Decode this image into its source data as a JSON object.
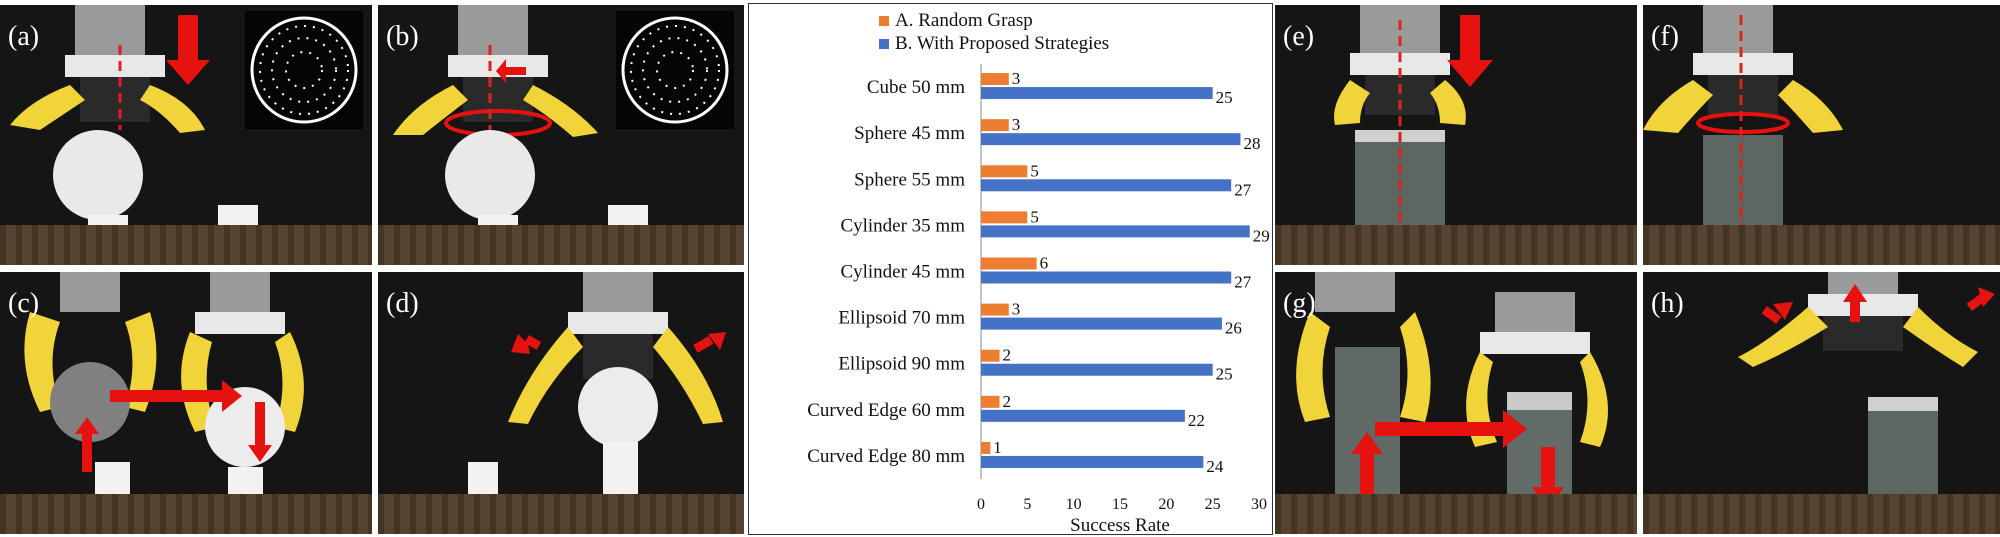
{
  "panels": {
    "a": "(a)",
    "b": "(b)",
    "c": "(c)",
    "d": "(d)",
    "e": "(e)",
    "f": "(f)",
    "g": "(g)",
    "h": "(h)"
  },
  "chart_data": {
    "type": "bar",
    "orientation": "horizontal",
    "categories": [
      "Cube 50 mm",
      "Sphere 45 mm",
      "Sphere 55 mm",
      "Cylinder 35 mm",
      "Cylinder 45 mm",
      "Ellipsoid 70 mm",
      "Ellipsoid 90 mm",
      "Curved Edge 60 mm",
      "Curved Edge 80 mm"
    ],
    "series": [
      {
        "name": "A. Random Grasp",
        "color": "#ed7d31",
        "values": [
          3,
          3,
          5,
          5,
          6,
          3,
          2,
          2,
          1
        ]
      },
      {
        "name": "B. With Proposed Strategies",
        "color": "#4472c4",
        "values": [
          25,
          28,
          27,
          29,
          27,
          26,
          25,
          22,
          24
        ]
      }
    ],
    "xlabel": "Success Rate",
    "ylabel": "",
    "xlim": [
      0,
      30
    ],
    "xticks": [
      "0",
      "5",
      "10",
      "15",
      "20",
      "25",
      "30"
    ],
    "legend": "top",
    "grid": false
  }
}
